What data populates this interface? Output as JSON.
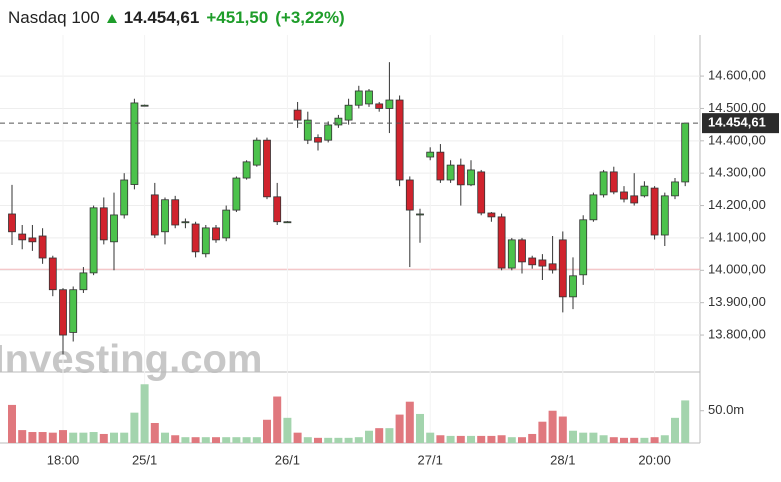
{
  "header": {
    "name": "Nasdaq 100",
    "price": "14.454,61",
    "change": "+451,50",
    "change_percent": "(+3,22%)"
  },
  "chart_data": {
    "type": "candlestick",
    "watermark": "Investing.com",
    "categories": [
      null,
      null,
      null,
      null,
      null,
      "18:00",
      null,
      null,
      null,
      null,
      null,
      null,
      null,
      "25/1",
      null,
      null,
      null,
      null,
      null,
      null,
      null,
      null,
      null,
      null,
      null,
      null,
      null,
      "26/1",
      null,
      null,
      null,
      null,
      null,
      null,
      null,
      null,
      null,
      null,
      null,
      null,
      null,
      "27/1",
      null,
      null,
      null,
      null,
      null,
      null,
      null,
      null,
      null,
      null,
      null,
      null,
      "28/1",
      null,
      null,
      null,
      null,
      null,
      null,
      null,
      null,
      "20:00",
      null,
      null,
      null
    ],
    "open": [
      14174,
      14112,
      14100,
      14106,
      14038,
      13940,
      13808,
      13940,
      13992,
      14193,
      14088,
      14171,
      14265,
      14510,
      14233,
      14119,
      14218,
      14150,
      14143,
      14051,
      14131,
      14100,
      14186,
      14285,
      14325,
      14402,
      14227,
      14150,
      14495,
      14402,
      14410,
      14402,
      14449,
      14464,
      14510,
      14514,
      14514,
      14500,
      14526,
      14279,
      14174,
      14350,
      14365,
      14279,
      14325,
      14264,
      14304,
      14177,
      14165,
      14007,
      14094,
      14038,
      14032,
      14020,
      14094,
      13918,
      13986,
      14156,
      14233,
      14304,
      14242,
      14230,
      14230,
      14254,
      14109,
      14230,
      14273
    ],
    "high": [
      14264,
      14140,
      14140,
      14130,
      14045,
      13945,
      13950,
      14010,
      14200,
      14225,
      14240,
      14300,
      14530,
      14512,
      14270,
      14225,
      14230,
      14160,
      14150,
      14140,
      14140,
      14200,
      14290,
      14340,
      14410,
      14410,
      14270,
      14152,
      14520,
      14490,
      14420,
      14460,
      14480,
      14530,
      14570,
      14560,
      14520,
      14643,
      14540,
      14290,
      14190,
      14380,
      14390,
      14340,
      14345,
      14340,
      14310,
      14180,
      14175,
      14100,
      14100,
      14045,
      14050,
      14106,
      14120,
      14040,
      14170,
      14240,
      14310,
      14320,
      14260,
      14300,
      14275,
      14260,
      14240,
      14285,
      14455
    ],
    "low": [
      14078,
      14065,
      14060,
      14020,
      13920,
      13740,
      13780,
      13930,
      13985,
      14080,
      14000,
      14160,
      14250,
      14508,
      14100,
      14080,
      14130,
      14130,
      14040,
      14040,
      14085,
      14090,
      14180,
      14280,
      14320,
      14220,
      14140,
      14148,
      14440,
      14390,
      14370,
      14395,
      14440,
      14450,
      14500,
      14505,
      14490,
      14424,
      14260,
      14010,
      14085,
      14340,
      14270,
      14270,
      14200,
      14260,
      14170,
      14150,
      14000,
      14000,
      13990,
      14005,
      13970,
      13990,
      13870,
      13880,
      13955,
      14150,
      14225,
      14235,
      14210,
      14200,
      14225,
      14095,
      14075,
      14220,
      14260
    ],
    "close": [
      14119,
      14094,
      14088,
      14038,
      13940,
      13800,
      13940,
      13992,
      14193,
      14094,
      14171,
      14279,
      14517,
      14510,
      14109,
      14218,
      14140,
      14150,
      14057,
      14131,
      14094,
      14186,
      14285,
      14335,
      14402,
      14227,
      14150,
      14150,
      14464,
      14464,
      14396,
      14449,
      14470,
      14510,
      14554,
      14554,
      14500,
      14526,
      14279,
      14186,
      14174,
      14365,
      14279,
      14325,
      14264,
      14310,
      14177,
      14165,
      14007,
      14094,
      14026,
      14017,
      14013,
      14001,
      13918,
      13983,
      14156,
      14233,
      14304,
      14242,
      14220,
      14208,
      14260,
      14109,
      14230,
      14273,
      14454.61
    ],
    "volume": [
      59,
      20,
      17,
      17,
      16,
      20,
      16,
      16,
      17,
      14,
      16,
      16,
      47,
      91,
      31,
      16,
      12,
      9,
      9,
      9,
      9,
      9,
      9,
      9,
      9,
      36,
      72,
      39,
      16,
      9,
      8,
      8,
      8,
      8,
      9,
      19,
      23,
      23,
      44,
      64,
      45,
      16,
      12,
      11,
      11,
      11,
      11,
      11,
      12,
      9,
      9,
      14,
      33,
      50,
      41,
      19,
      16,
      16,
      12,
      9,
      8,
      8,
      8,
      9,
      12,
      39,
      66
    ],
    "ylim": [
      13692,
      14696
    ],
    "yticks": [
      {
        "value": 13800,
        "label": "13.800,00"
      },
      {
        "value": 13900,
        "label": "13.900,00"
      },
      {
        "value": 14000,
        "label": "14.000,00"
      },
      {
        "value": 14100,
        "label": "14.100,00"
      },
      {
        "value": 14200,
        "label": "14.200,00"
      },
      {
        "value": 14300,
        "label": "14.300,00"
      },
      {
        "value": 14400,
        "label": "14.400,00"
      },
      {
        "value": 14500,
        "label": "14.500,00"
      },
      {
        "value": 14600,
        "label": "14.600,00"
      }
    ],
    "volume_ylim": [
      0,
      110
    ],
    "volume_yticks": [
      {
        "value": 50,
        "label": "50.0m"
      }
    ],
    "previous_close": 14003.11,
    "up_color": "#4cc24c",
    "down_color": "#d0232d",
    "up_volume_color": "#a3d4ad",
    "down_volume_color": "#e0787e",
    "grid": true
  }
}
